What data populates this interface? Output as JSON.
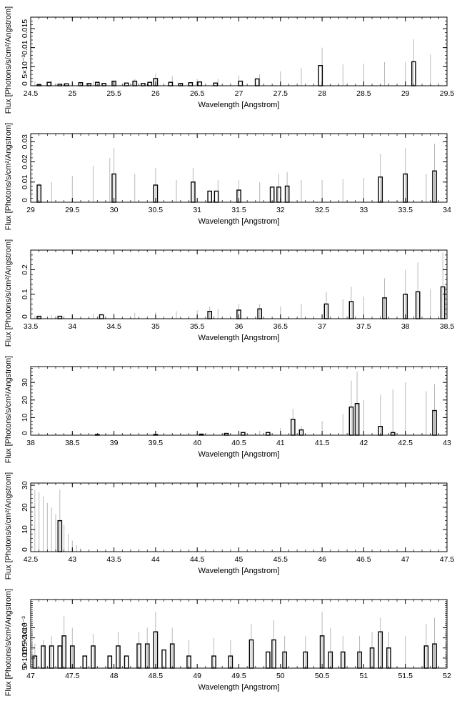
{
  "figure": {
    "background": "#ffffff",
    "line_color": "#000000",
    "error_bar_color": "#b8b8b8"
  },
  "chart_data": [
    {
      "type": "bar",
      "xlabel": "Wavelength [Angstrom]",
      "ylabel": "Flux [Photons/s/cm²/Angstrom]",
      "xlim": [
        24.5,
        29.5
      ],
      "ylim": [
        0,
        0.018
      ],
      "x_ticks": [
        24.5,
        25,
        25.5,
        26,
        26.5,
        27,
        27.5,
        28,
        28.5,
        29,
        29.5
      ],
      "x_tick_labels": [
        "24.5",
        "25",
        "25.5",
        "26",
        "26.5",
        "27",
        "27.5",
        "28",
        "28.5",
        "29",
        "29.5"
      ],
      "y_ticks": [
        0,
        0.005,
        0.01,
        0.015
      ],
      "y_tick_labels": [
        "0",
        "5×10⁻³",
        "0.01",
        "0.015"
      ],
      "grid": false,
      "bins": [
        [
          24.6,
          0.0003
        ],
        [
          24.72,
          0.0009
        ],
        [
          24.85,
          0.0004
        ],
        [
          24.93,
          0.0005
        ],
        [
          25.1,
          0.0008
        ],
        [
          25.2,
          0.0006
        ],
        [
          25.3,
          0.0009
        ],
        [
          25.38,
          0.0006
        ],
        [
          25.5,
          0.0012
        ],
        [
          25.65,
          0.0007
        ],
        [
          25.75,
          0.0012
        ],
        [
          25.85,
          0.0006
        ],
        [
          25.93,
          0.0009
        ],
        [
          26.0,
          0.0019
        ],
        [
          26.18,
          0.0009
        ],
        [
          26.3,
          0.0006
        ],
        [
          26.42,
          0.0008
        ],
        [
          26.53,
          0.001
        ],
        [
          26.72,
          0.0007
        ],
        [
          27.02,
          0.0012
        ],
        [
          27.22,
          0.0018
        ],
        [
          27.98,
          0.0053
        ],
        [
          29.1,
          0.0063
        ]
      ],
      "errors": [
        [
          24.55,
          0.0012
        ],
        [
          24.75,
          0.0013
        ],
        [
          25.0,
          0.0011
        ],
        [
          25.25,
          0.0013
        ],
        [
          25.5,
          0.0012
        ],
        [
          25.75,
          0.0018
        ],
        [
          26.0,
          0.0032
        ],
        [
          26.2,
          0.0025
        ],
        [
          26.5,
          0.0018
        ],
        [
          26.75,
          0.0018
        ],
        [
          27.0,
          0.0027
        ],
        [
          27.25,
          0.003
        ],
        [
          27.5,
          0.0038
        ],
        [
          27.75,
          0.0046
        ],
        [
          28.0,
          0.01
        ],
        [
          28.25,
          0.0056
        ],
        [
          28.5,
          0.0058
        ],
        [
          28.75,
          0.0062
        ],
        [
          29.0,
          0.0062
        ],
        [
          29.1,
          0.0122
        ],
        [
          29.3,
          0.0082
        ],
        [
          29.5,
          0.01
        ]
      ]
    },
    {
      "type": "bar",
      "xlabel": "Wavelength [Angstrom]",
      "ylabel": "Flux [Photons/s/cm²/Angstrom]",
      "xlim": [
        29,
        34
      ],
      "ylim": [
        0,
        0.034
      ],
      "x_ticks": [
        29,
        29.5,
        30,
        30.5,
        31,
        31.5,
        32,
        32.5,
        33,
        33.5,
        34
      ],
      "x_tick_labels": [
        "29",
        "29.5",
        "30",
        "30.5",
        "31",
        "31.5",
        "32",
        "32.5",
        "33",
        "33.5",
        "34"
      ],
      "y_ticks": [
        0,
        0.01,
        0.02,
        0.03
      ],
      "y_tick_labels": [
        "0",
        "0.01",
        "0.02",
        "0.03"
      ],
      "grid": false,
      "bins": [
        [
          29.1,
          0.0085
        ],
        [
          30.0,
          0.014
        ],
        [
          30.5,
          0.0085
        ],
        [
          30.95,
          0.01
        ],
        [
          31.15,
          0.0055
        ],
        [
          31.23,
          0.0055
        ],
        [
          31.5,
          0.006
        ],
        [
          31.9,
          0.0075
        ],
        [
          31.98,
          0.0075
        ],
        [
          32.08,
          0.008
        ],
        [
          33.2,
          0.0125
        ],
        [
          33.5,
          0.014
        ],
        [
          33.85,
          0.0155
        ]
      ],
      "errors": [
        [
          29.1,
          0.0095
        ],
        [
          29.25,
          0.01
        ],
        [
          29.5,
          0.013
        ],
        [
          29.75,
          0.018
        ],
        [
          29.95,
          0.022
        ],
        [
          30.0,
          0.027
        ],
        [
          30.25,
          0.014
        ],
        [
          30.5,
          0.017
        ],
        [
          30.75,
          0.011
        ],
        [
          30.95,
          0.017
        ],
        [
          31.25,
          0.011
        ],
        [
          31.5,
          0.011
        ],
        [
          31.75,
          0.01
        ],
        [
          31.98,
          0.014
        ],
        [
          32.08,
          0.015
        ],
        [
          32.25,
          0.011
        ],
        [
          32.5,
          0.011
        ],
        [
          32.75,
          0.0115
        ],
        [
          33.0,
          0.012
        ],
        [
          33.2,
          0.024
        ],
        [
          33.5,
          0.027
        ],
        [
          33.75,
          0.014
        ],
        [
          33.85,
          0.029
        ],
        [
          34.0,
          0.016
        ]
      ]
    },
    {
      "type": "bar",
      "xlabel": "Wavelength [Angstrom]",
      "ylabel": "Flux [Photons/s/cm²/Angstrom]",
      "xlim": [
        33.5,
        38.5
      ],
      "ylim": [
        0,
        0.28
      ],
      "x_ticks": [
        33.5,
        34,
        34.5,
        35,
        35.5,
        36,
        36.5,
        37,
        37.5,
        38,
        38.5
      ],
      "x_tick_labels": [
        "33.5",
        "34",
        "34.5",
        "35",
        "35.5",
        "36",
        "36.5",
        "37",
        "37.5",
        "38",
        "38.5"
      ],
      "y_ticks": [
        0,
        0.1,
        0.2
      ],
      "y_tick_labels": [
        "0",
        "0.1",
        "0.2"
      ],
      "grid": false,
      "bins": [
        [
          33.6,
          0.01
        ],
        [
          33.85,
          0.01
        ],
        [
          34.35,
          0.016
        ],
        [
          35.65,
          0.03
        ],
        [
          36.0,
          0.035
        ],
        [
          36.25,
          0.04
        ],
        [
          37.05,
          0.06
        ],
        [
          37.35,
          0.07
        ],
        [
          37.75,
          0.085
        ],
        [
          38.0,
          0.1
        ],
        [
          38.15,
          0.11
        ],
        [
          38.45,
          0.13
        ]
      ],
      "errors": [
        [
          33.55,
          0.012
        ],
        [
          33.75,
          0.015
        ],
        [
          34.0,
          0.018
        ],
        [
          34.25,
          0.02
        ],
        [
          34.5,
          0.022
        ],
        [
          34.75,
          0.024
        ],
        [
          35.0,
          0.026
        ],
        [
          35.25,
          0.03
        ],
        [
          35.5,
          0.034
        ],
        [
          35.65,
          0.05
        ],
        [
          35.75,
          0.04
        ],
        [
          36.0,
          0.06
        ],
        [
          36.25,
          0.06
        ],
        [
          36.5,
          0.05
        ],
        [
          36.75,
          0.06
        ],
        [
          37.05,
          0.11
        ],
        [
          37.25,
          0.08
        ],
        [
          37.35,
          0.13
        ],
        [
          37.5,
          0.09
        ],
        [
          37.75,
          0.165
        ],
        [
          38.0,
          0.2
        ],
        [
          38.15,
          0.23
        ],
        [
          38.3,
          0.12
        ],
        [
          38.45,
          0.27
        ]
      ]
    },
    {
      "type": "bar",
      "xlabel": "Wavelength [Angstrom]",
      "ylabel": "Flux [Photons/s/cm²/Angstrom]",
      "xlim": [
        38,
        43
      ],
      "ylim": [
        0,
        39
      ],
      "x_ticks": [
        38,
        38.5,
        39,
        39.5,
        40,
        40.5,
        41,
        41.5,
        42,
        42.5,
        43
      ],
      "x_tick_labels": [
        "38",
        "38.5",
        "39",
        "39.5",
        "40",
        "40.5",
        "41",
        "41.5",
        "42",
        "42.5",
        "43"
      ],
      "y_ticks": [
        0,
        10,
        20,
        30
      ],
      "y_tick_labels": [
        "0",
        "10",
        "20",
        "30"
      ],
      "grid": false,
      "bins": [
        [
          38.8,
          0.4
        ],
        [
          39.5,
          0.4
        ],
        [
          40.05,
          0.6
        ],
        [
          40.35,
          1.0
        ],
        [
          40.55,
          1.5
        ],
        [
          40.85,
          1.5
        ],
        [
          41.15,
          9.0
        ],
        [
          41.25,
          3.0
        ],
        [
          41.85,
          16.0
        ],
        [
          41.92,
          18.0
        ],
        [
          42.2,
          5.0
        ],
        [
          42.35,
          1.5
        ],
        [
          42.85,
          14.0
        ]
      ],
      "errors": [
        [
          39.0,
          0.6
        ],
        [
          39.5,
          0.9
        ],
        [
          40.0,
          1.2
        ],
        [
          40.5,
          2.0
        ],
        [
          40.75,
          2.5
        ],
        [
          41.0,
          4.0
        ],
        [
          41.15,
          15.0
        ],
        [
          41.25,
          5.0
        ],
        [
          41.5,
          8.0
        ],
        [
          41.75,
          12.0
        ],
        [
          41.85,
          31.0
        ],
        [
          41.92,
          36.0
        ],
        [
          42.0,
          20.0
        ],
        [
          42.2,
          23.0
        ],
        [
          42.35,
          26.0
        ],
        [
          42.5,
          30.0
        ],
        [
          42.75,
          25.0
        ],
        [
          42.85,
          29.0
        ],
        [
          43.0,
          15.0
        ]
      ]
    },
    {
      "type": "bar",
      "xlabel": "Wavelength [Angstrom]",
      "ylabel": "Flux [Photons/s/cm²/Angstrom]",
      "xlim": [
        42.5,
        47.5
      ],
      "ylim": [
        0,
        31
      ],
      "x_ticks": [
        42.5,
        43,
        43.5,
        44,
        44.5,
        45,
        45.5,
        46,
        46.5,
        47,
        47.5
      ],
      "x_tick_labels": [
        "42.5",
        "43",
        "43.5",
        "44",
        "44.5",
        "45",
        "45.5",
        "46",
        "46.5",
        "47",
        "47.5"
      ],
      "y_ticks": [
        0,
        10,
        20,
        30
      ],
      "y_tick_labels": [
        "0",
        "10",
        "20",
        "30"
      ],
      "grid": false,
      "bins": [
        [
          42.85,
          14.0
        ]
      ],
      "errors": [
        [
          42.55,
          28.0
        ],
        [
          42.6,
          27.0
        ],
        [
          42.65,
          25.0
        ],
        [
          42.7,
          22.0
        ],
        [
          42.75,
          20.0
        ],
        [
          42.8,
          17.0
        ],
        [
          42.85,
          28.0
        ],
        [
          42.9,
          12.0
        ],
        [
          42.95,
          8.0
        ],
        [
          43.0,
          5.0
        ],
        [
          43.05,
          3.0
        ],
        [
          43.1,
          1.5
        ]
      ]
    },
    {
      "type": "bar",
      "xlabel": "Wavelength [Angstrom]",
      "ylabel": "Flux [Photons/s/cm²/Angstrom]",
      "xlim": [
        47,
        52
      ],
      "ylim": [
        0,
        0.0034
      ],
      "x_ticks": [
        47,
        47.5,
        48,
        48.5,
        49,
        49.5,
        50,
        50.5,
        51,
        51.5,
        52
      ],
      "x_tick_labels": [
        "47",
        "47.5",
        "48",
        "48.5",
        "49",
        "49.5",
        "50",
        "50.5",
        "51",
        "51.5",
        "52"
      ],
      "y_ticks": [
        0,
        0.0005,
        0.001,
        0.0015,
        0.002
      ],
      "y_tick_labels": [
        "0",
        "5×10⁻⁴",
        "10⁻³",
        "1.5×10⁻³",
        "2×10⁻³"
      ],
      "grid": false,
      "bins": [
        [
          47.05,
          0.0006
        ],
        [
          47.15,
          0.0011
        ],
        [
          47.25,
          0.0011
        ],
        [
          47.35,
          0.0011
        ],
        [
          47.4,
          0.0016
        ],
        [
          47.5,
          0.0011
        ],
        [
          47.65,
          0.0006
        ],
        [
          47.75,
          0.0011
        ],
        [
          47.95,
          0.0006
        ],
        [
          48.05,
          0.0011
        ],
        [
          48.15,
          0.0006
        ],
        [
          48.3,
          0.0012
        ],
        [
          48.4,
          0.0012
        ],
        [
          48.5,
          0.0018
        ],
        [
          48.6,
          0.0009
        ],
        [
          48.7,
          0.0012
        ],
        [
          48.9,
          0.0006
        ],
        [
          49.2,
          0.0006
        ],
        [
          49.4,
          0.0006
        ],
        [
          49.65,
          0.0014
        ],
        [
          49.85,
          0.0008
        ],
        [
          49.92,
          0.0014
        ],
        [
          50.05,
          0.0008
        ],
        [
          50.3,
          0.0008
        ],
        [
          50.5,
          0.0016
        ],
        [
          50.6,
          0.0008
        ],
        [
          50.75,
          0.0008
        ],
        [
          50.95,
          0.0008
        ],
        [
          51.1,
          0.001
        ],
        [
          51.2,
          0.0018
        ],
        [
          51.3,
          0.001
        ],
        [
          51.75,
          0.0011
        ],
        [
          51.85,
          0.0012
        ]
      ],
      "errors": [
        [
          47.05,
          0.0012
        ],
        [
          47.15,
          0.0014
        ],
        [
          47.25,
          0.0016
        ],
        [
          47.4,
          0.0026
        ],
        [
          47.5,
          0.002
        ],
        [
          47.75,
          0.0017
        ],
        [
          48.05,
          0.0018
        ],
        [
          48.3,
          0.0018
        ],
        [
          48.4,
          0.002
        ],
        [
          48.5,
          0.0028
        ],
        [
          48.7,
          0.002
        ],
        [
          48.9,
          0.0014
        ],
        [
          49.2,
          0.0015
        ],
        [
          49.4,
          0.0014
        ],
        [
          49.65,
          0.0022
        ],
        [
          49.92,
          0.0024
        ],
        [
          50.05,
          0.0016
        ],
        [
          50.3,
          0.0016
        ],
        [
          50.5,
          0.0028
        ],
        [
          50.6,
          0.002
        ],
        [
          50.75,
          0.0016
        ],
        [
          50.95,
          0.0016
        ],
        [
          51.1,
          0.0018
        ],
        [
          51.2,
          0.0025
        ],
        [
          51.3,
          0.0018
        ],
        [
          51.5,
          0.0016
        ],
        [
          51.75,
          0.0022
        ],
        [
          51.85,
          0.0025
        ],
        [
          52.0,
          0.0014
        ]
      ]
    }
  ]
}
